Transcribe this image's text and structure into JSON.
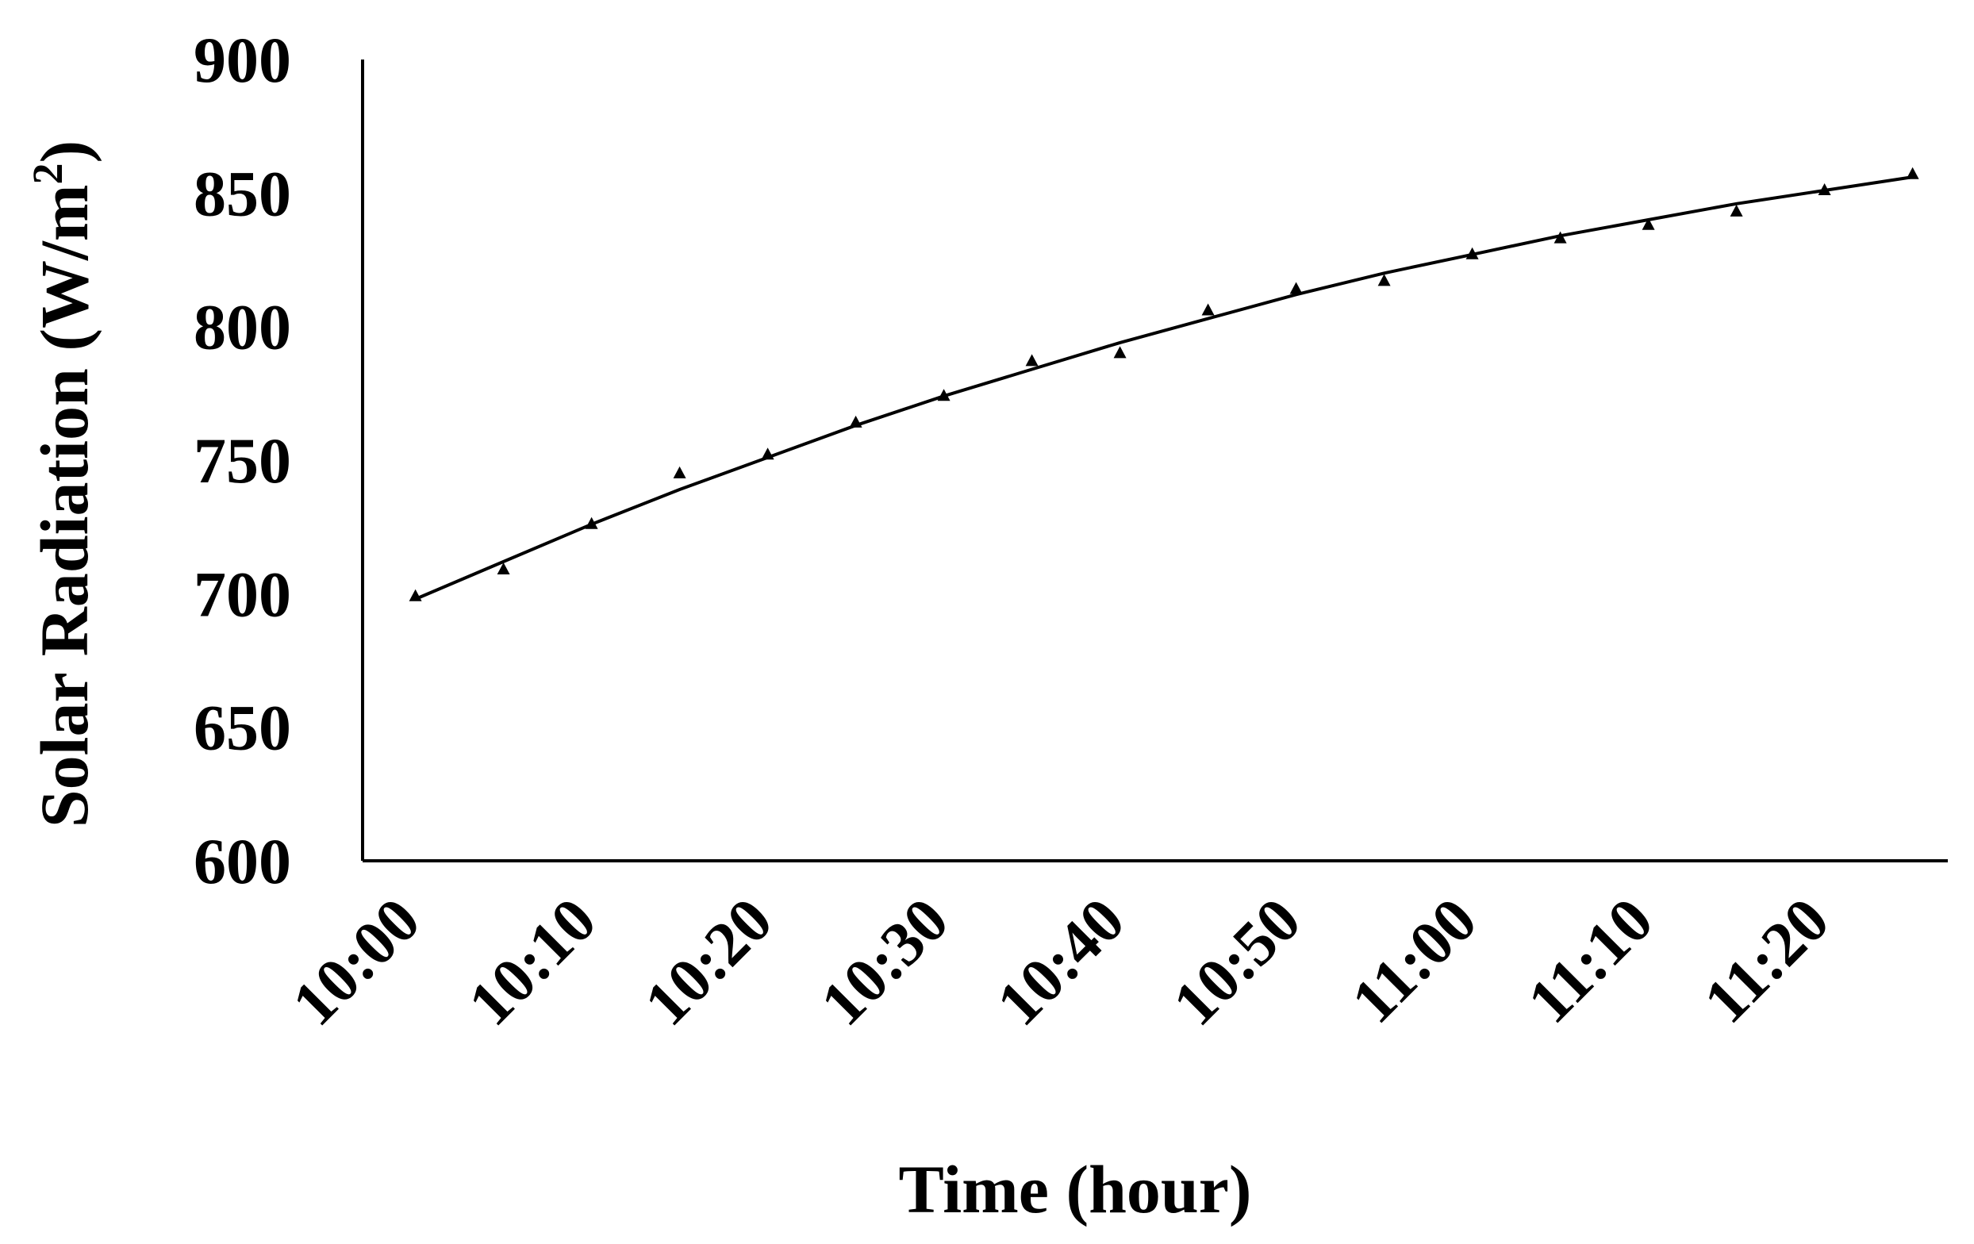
{
  "chart_data": {
    "type": "scatter",
    "title": "",
    "xlabel": "Time (hour)",
    "ylabel": "Solar Radiation (W/m",
    "ylabel_superscript": "2",
    "ylabel_suffix": ")",
    "ylim": [
      600,
      900
    ],
    "yticks": [
      600,
      650,
      700,
      750,
      800,
      850,
      900
    ],
    "xlim": [
      "09:57",
      "11:27"
    ],
    "xticks": [
      "10:00",
      "10:10",
      "10:20",
      "10:30",
      "10:40",
      "10:50",
      "11:00",
      "11:10",
      "11:20"
    ],
    "grid": false,
    "legend": "none",
    "marker": "triangle",
    "series": [
      {
        "x": [
          "10:00",
          "10:05",
          "10:10",
          "10:15",
          "10:20",
          "10:25",
          "10:30",
          "10:35",
          "10:40",
          "10:45",
          "10:50",
          "10:55",
          "11:00",
          "11:05",
          "11:10",
          "11:15",
          "11:20",
          "11:25"
        ],
        "values": [
          699,
          709,
          726,
          745,
          752,
          764,
          774,
          787,
          790,
          806,
          814,
          817,
          827,
          833,
          838,
          843,
          851,
          857
        ]
      }
    ],
    "trendline": {
      "type": "polynomial",
      "x": [
        "10:00",
        "10:05",
        "10:10",
        "10:15",
        "10:20",
        "10:25",
        "10:30",
        "10:35",
        "10:40",
        "10:45",
        "10:50",
        "10:55",
        "11:00",
        "11:05",
        "11:10",
        "11:15",
        "11:20",
        "11:25"
      ],
      "values": [
        698,
        712,
        726,
        739,
        751,
        763,
        774,
        784,
        794,
        803,
        812,
        820,
        827,
        834,
        840,
        846,
        851,
        856
      ]
    }
  },
  "colors": {
    "ink": "#000000",
    "background": "#ffffff"
  }
}
